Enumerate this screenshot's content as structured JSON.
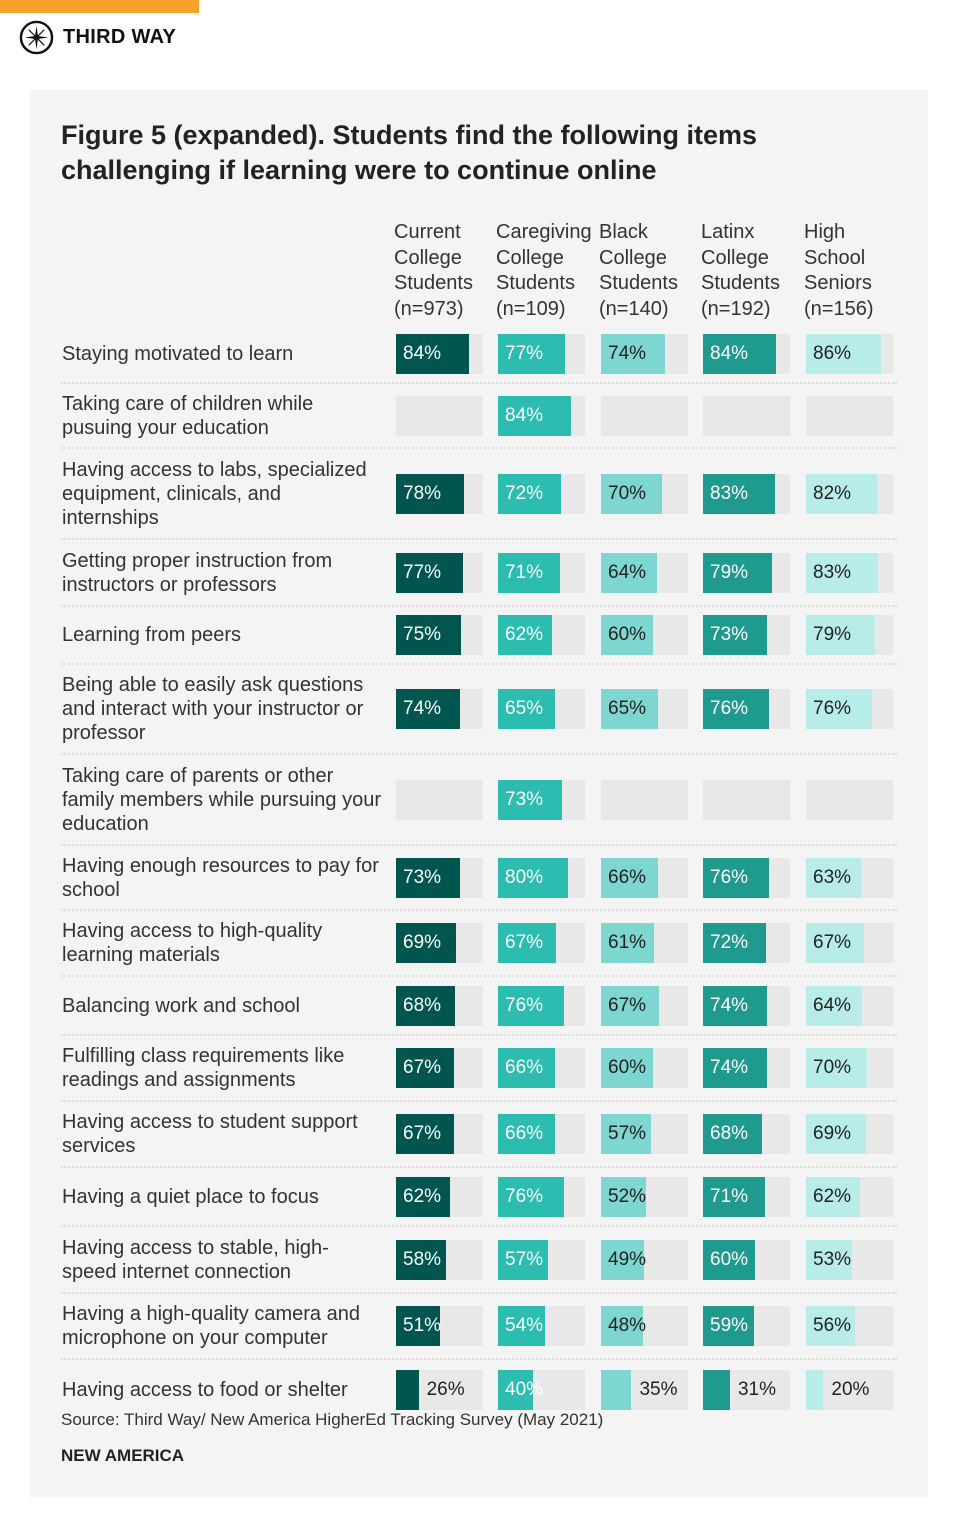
{
  "header": {
    "brand": "THIRD WAY",
    "accent": "#f8a22a"
  },
  "chart_data": {
    "type": "bar",
    "title": "Figure 5 (expanded). Students find the following items challenging if learning were to continue online",
    "series": [
      {
        "name": "Current College Students (n=973)",
        "color": "#00564f",
        "text_color": "#ffffff"
      },
      {
        "name": "Caregiving College Students (n=109)",
        "color": "#2dbcb0",
        "text_color": "#ffffff"
      },
      {
        "name": "Black College Students (n=140)",
        "color": "#7dd6cf",
        "text_color": "#222222"
      },
      {
        "name": "Latinx College Students (n=192)",
        "color": "#1f9a8e",
        "text_color": "#ffffff"
      },
      {
        "name": "High School Seniors (n=156)",
        "color": "#b8ece8",
        "text_color": "#222222"
      }
    ],
    "column_headers": [
      [
        "Current",
        "College",
        "Students",
        "(n=973)"
      ],
      [
        "Caregiving",
        "College",
        "Students",
        "(n=109)"
      ],
      [
        "Black",
        "College",
        "Students",
        "(n=140)"
      ],
      [
        "Latinx",
        "College",
        "Students",
        "(n=192)"
      ],
      [
        "High",
        "School",
        "Seniors",
        "(n=156)"
      ]
    ],
    "xlim": [
      0,
      100
    ],
    "categories": [
      "Staying motivated to learn",
      "Taking care of children while pusuing your education",
      "Having access to labs, specialized equipment, clinicals, and internships",
      "Getting proper instruction from instructors or professors",
      "Learning from peers",
      "Being able to easily ask questions and interact with your instructor or professor",
      "Taking care of parents or other family members while pursuing your education",
      "Having enough resources to pay for school",
      "Having access to high-quality learning materials",
      "Balancing work and school",
      "Fulfilling class requirements like readings and assignments",
      "Having access to student support services",
      "Having a quiet place to focus",
      "Having access to stable, high-speed internet connection",
      "Having a high-quality camera and microphone on your computer",
      "Having access to food or shelter"
    ],
    "values": [
      [
        84,
        77,
        74,
        84,
        86
      ],
      [
        null,
        84,
        null,
        null,
        null
      ],
      [
        78,
        72,
        70,
        83,
        82
      ],
      [
        77,
        71,
        64,
        79,
        83
      ],
      [
        75,
        62,
        60,
        73,
        79
      ],
      [
        74,
        65,
        65,
        76,
        76
      ],
      [
        null,
        73,
        null,
        null,
        null
      ],
      [
        73,
        80,
        66,
        76,
        63
      ],
      [
        69,
        67,
        61,
        72,
        67
      ],
      [
        68,
        76,
        67,
        74,
        64
      ],
      [
        67,
        66,
        60,
        74,
        70
      ],
      [
        67,
        66,
        57,
        68,
        69
      ],
      [
        62,
        76,
        52,
        71,
        62
      ],
      [
        58,
        57,
        49,
        60,
        53
      ],
      [
        51,
        54,
        48,
        59,
        56
      ],
      [
        26,
        40,
        35,
        31,
        20
      ]
    ]
  },
  "footer": {
    "source": "Source: Third Way/ New America HigherEd Tracking Survey (May 2021)",
    "brand": "NEW AMERICA"
  }
}
